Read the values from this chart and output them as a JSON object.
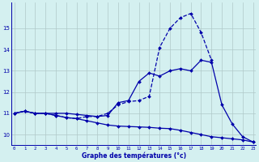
{
  "xlabel": "Graphe des températures (°c)",
  "background_color": "#d4f0f0",
  "grid_color": "#b0c8c8",
  "line_color": "#0000aa",
  "hours": [
    0,
    1,
    2,
    3,
    4,
    5,
    6,
    7,
    8,
    9,
    10,
    11,
    12,
    13,
    14,
    15,
    16,
    17,
    18,
    19,
    20,
    21,
    22,
    23
  ],
  "line1": [
    11.0,
    11.1,
    11.0,
    11.0,
    10.9,
    10.8,
    10.75,
    10.65,
    10.55,
    10.45,
    10.4,
    10.38,
    10.36,
    10.34,
    10.3,
    10.28,
    10.2,
    10.1,
    10.0,
    9.9,
    9.85,
    9.8,
    9.75,
    9.65
  ],
  "line2": [
    11.0,
    11.1,
    11.0,
    11.0,
    11.0,
    11.0,
    10.95,
    10.9,
    10.85,
    10.9,
    11.5,
    11.6,
    12.5,
    12.9,
    12.75,
    13.0,
    13.1,
    13.0,
    13.5,
    13.4,
    11.4,
    10.5,
    9.9,
    9.65
  ],
  "line3": [
    11.0,
    11.1,
    11.0,
    11.0,
    10.9,
    10.8,
    10.75,
    10.85,
    10.85,
    11.0,
    11.4,
    11.55,
    11.6,
    11.8,
    14.1,
    15.0,
    15.5,
    15.7,
    14.8,
    13.5,
    null,
    null,
    null,
    null
  ],
  "line3_hours": [
    0,
    1,
    2,
    3,
    4,
    5,
    6,
    7,
    8,
    9,
    10,
    11,
    12,
    13,
    14,
    15,
    16,
    17,
    18,
    19
  ],
  "line3_vals": [
    11.0,
    11.1,
    11.0,
    11.0,
    10.9,
    10.8,
    10.75,
    10.85,
    10.85,
    11.0,
    11.4,
    11.55,
    11.6,
    11.8,
    14.1,
    15.0,
    15.5,
    15.7,
    14.8,
    13.5
  ],
  "ylim": [
    9.5,
    16.2
  ],
  "yticks": [
    10,
    11,
    12,
    13,
    14,
    15
  ],
  "xlim": [
    -0.3,
    23.3
  ],
  "figsize": [
    3.2,
    2.0
  ],
  "dpi": 100
}
